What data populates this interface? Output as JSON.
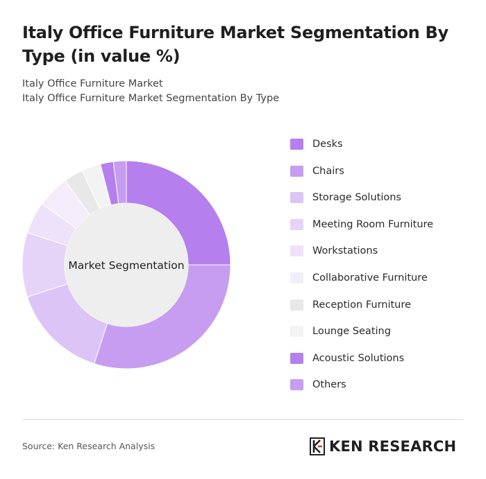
{
  "header": {
    "title": "Italy Office Furniture Market Segmentation By Type (in value %)",
    "subtitle_1": "Italy Office Furniture Market",
    "subtitle_2": "Italy Office Furniture Market Segmentation By Type"
  },
  "chart_data": {
    "type": "pie",
    "donut": true,
    "center_label": "Market Segmentation",
    "legend_position": "right",
    "series": [
      {
        "name": "Desks",
        "value": 25,
        "color": "#b57fed"
      },
      {
        "name": "Chairs",
        "value": 30,
        "color": "#c69df1"
      },
      {
        "name": "Storage Solutions",
        "value": 15,
        "color": "#dcc4f6"
      },
      {
        "name": "Meeting Room Furniture",
        "value": 10,
        "color": "#e5d3f8"
      },
      {
        "name": "Workstations",
        "value": 5,
        "color": "#ede2fa"
      },
      {
        "name": "Collaborative Furniture",
        "value": 5,
        "color": "#f3edfb"
      },
      {
        "name": "Reception Furniture",
        "value": 3,
        "color": "#e8e8e8"
      },
      {
        "name": "Lounge Seating",
        "value": 3,
        "color": "#f3f3f3"
      },
      {
        "name": "Acoustic Solutions",
        "value": 2,
        "color": "#b57fed"
      },
      {
        "name": "Others",
        "value": 2,
        "color": "#c69df1"
      }
    ]
  },
  "footer": {
    "source": "Source: Ken Research Analysis",
    "logo_text": "KEN RESEARCH"
  }
}
